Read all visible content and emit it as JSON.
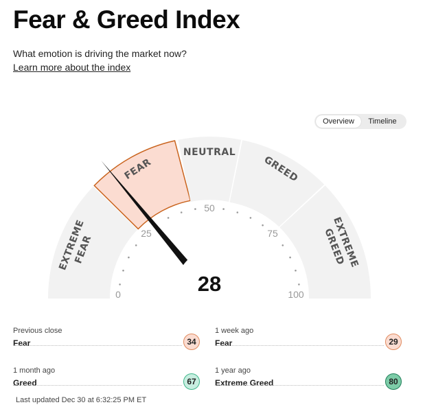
{
  "header": {
    "title": "Fear & Greed Index",
    "subtitle": "What emotion is driving the market now?",
    "learn_link": "Learn more about the index"
  },
  "view_toggle": {
    "options": [
      "Overview",
      "Timeline"
    ],
    "selected": "Overview"
  },
  "gauge": {
    "score": 28,
    "active_segment": "fear",
    "segment_labels": {
      "extreme_fear": [
        "EXTREME",
        "FEAR"
      ],
      "fear": "FEAR",
      "neutral": "NEUTRAL",
      "greed": "GREED",
      "extreme_greed": [
        "EXTREME",
        "GREED"
      ]
    },
    "tick_labels": [
      "0",
      "25",
      "50",
      "75",
      "100"
    ],
    "colors": {
      "segment": "#f2f2f2",
      "active_fill": "#fbdcd1",
      "active_stroke": "#c9631d",
      "needle": "#111111"
    }
  },
  "history": [
    {
      "label": "Previous close",
      "value": "Fear",
      "score": "34",
      "badge_bg": "#fbdcd1",
      "badge_border": "#e08a5e"
    },
    {
      "label": "1 week ago",
      "value": "Fear",
      "score": "29",
      "badge_bg": "#fbdcd1",
      "badge_border": "#e08a5e"
    },
    {
      "label": "1 month ago",
      "value": "Greed",
      "score": "67",
      "badge_bg": "#c7eee0",
      "badge_border": "#3eb68a"
    },
    {
      "label": "1 year ago",
      "value": "Extreme Greed",
      "score": "80",
      "badge_bg": "#7dcca8",
      "badge_border": "#1f7e58"
    }
  ],
  "last_updated": "Last updated Dec 30 at 6:32:25 PM ET"
}
